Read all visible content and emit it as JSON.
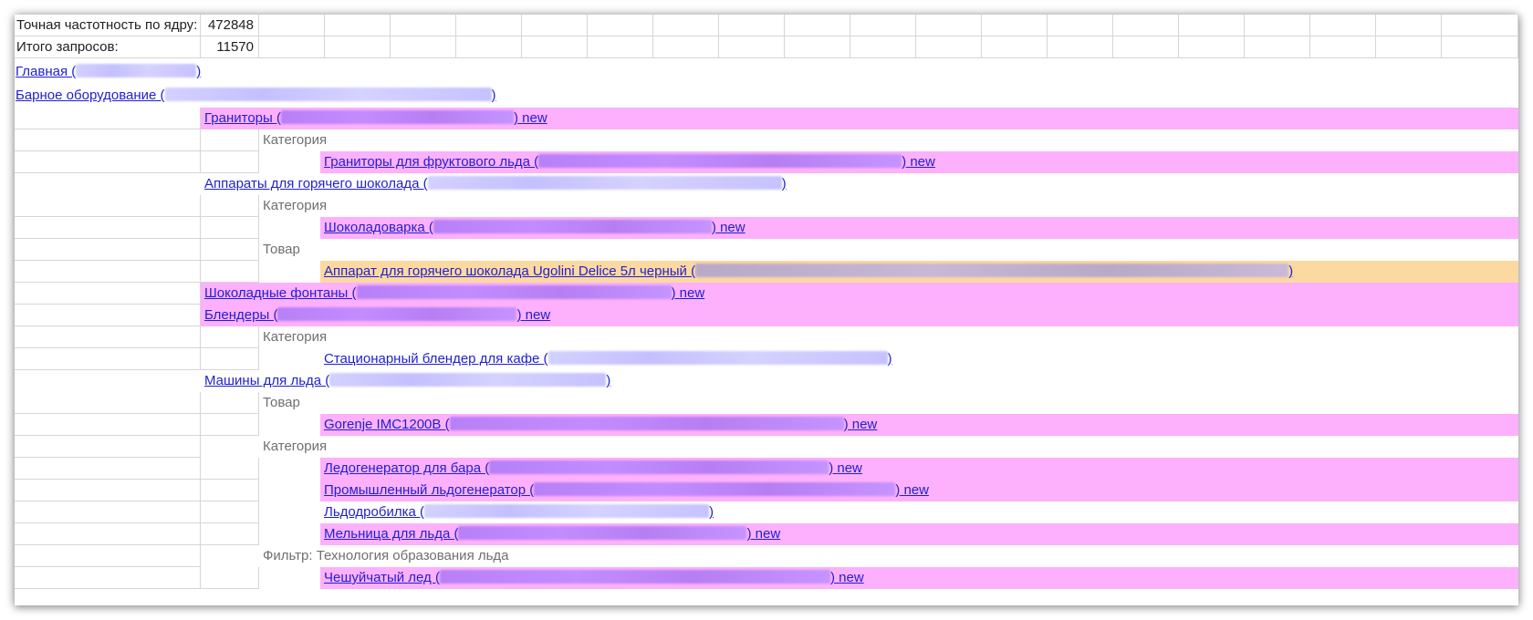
{
  "summary": {
    "exact_frequency_label": "Точная частотность по ядру:",
    "exact_frequency_value": "472848",
    "total_requests_label": "Итого запросов:",
    "total_requests_value": "11570"
  },
  "tree": {
    "root": {
      "text": "Главная (",
      "close": ")"
    },
    "bar_equipment": {
      "text": "Барное оборудование (",
      "close": ")"
    },
    "granitors": {
      "text": "Граниторы (",
      "close": ")",
      "badge": "new"
    },
    "cat1": "Категория",
    "granitors_fruit_ice": {
      "text": "Граниторы для фруктового льда (",
      "close": ")",
      "badge": "new"
    },
    "hot_chocolate": {
      "text": "Аппараты для горячего шоколада (",
      "close": ")"
    },
    "cat2": "Категория",
    "chocolate_maker": {
      "text": "Шоколадоварка (",
      "close": ")",
      "badge": "new"
    },
    "product1": "Товар",
    "ugolini": {
      "text": "Аппарат для горячего шоколада Ugolini Delice 5л черный (",
      "close": ")"
    },
    "chocolate_fountains": {
      "text": "Шоколадные фонтаны (",
      "close": ")",
      "badge": "new"
    },
    "blenders": {
      "text": "Блендеры (",
      "close": ")",
      "badge": "new"
    },
    "cat3": "Категория",
    "stationary_blender": {
      "text": "Стационарный блендер для кафе (",
      "close": ")"
    },
    "ice_machines": {
      "text": "Машины для льда (",
      "close": ")"
    },
    "product2": "Товар",
    "gorenje": {
      "text": "Gorenje IMC1200B (",
      "close": ")",
      "badge": "new"
    },
    "cat4": "Категория",
    "bar_ice_generator": {
      "text": "Ледогенератор для бара (",
      "close": ")",
      "badge": "new"
    },
    "industrial_ice_generator": {
      "text": "Промышленный льдогенератор (",
      "close": ")",
      "badge": "new"
    },
    "ice_crusher": {
      "text": "Льдодробилка (",
      "close": ")"
    },
    "ice_mill": {
      "text": "Мельница для льда (",
      "close": ")",
      "badge": "new"
    },
    "filter": "Фильтр: Технология образования льда",
    "flake_ice": {
      "text": "Чешуйчатый лед (",
      "close": ")",
      "badge": "new"
    }
  },
  "colors": {
    "link": "#1f1fd0",
    "highlight_pink": "#fdb0fc",
    "highlight_orange": "#fcd9a0",
    "gridline": "#d6d6d6",
    "muted_text": "#6f6f6f"
  }
}
